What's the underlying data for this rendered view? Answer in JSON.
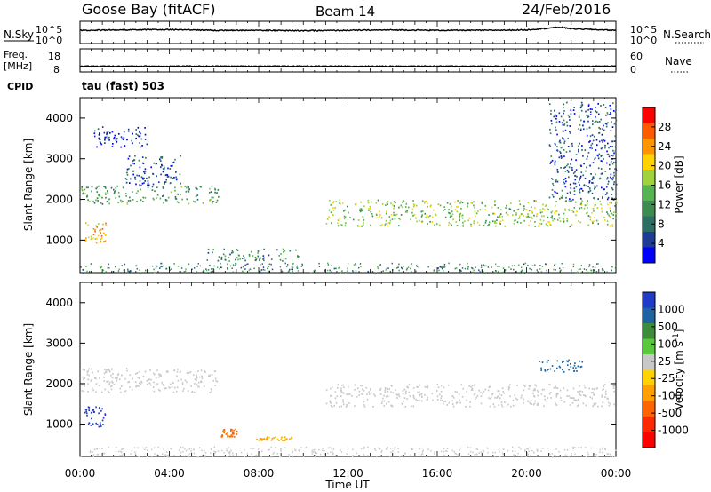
{
  "header": {
    "station": "Goose Bay (fitACF)",
    "beam": "Beam 14",
    "date": "24/Feb/2016"
  },
  "colors": {
    "power_scale": [
      "#0000ff",
      "#1e3c96",
      "#2d6e64",
      "#3c8c50",
      "#56b450",
      "#a0d23c",
      "#ffd200",
      "#ff9600",
      "#ff5a00",
      "#ff0000"
    ],
    "velocity_scale": [
      "#1e3cc8",
      "#1e64a0",
      "#3c8c3c",
      "#5ac83c",
      "#c8c8c8",
      "#ffd200",
      "#ffa000",
      "#ff6400",
      "#ff2800",
      "#ff0000"
    ]
  },
  "chart_data": [
    {
      "type": "line",
      "panel": "noise",
      "left_label": "N.Sky",
      "right_label": "N.Search",
      "left_ticks": [
        "10^5",
        "10^0"
      ],
      "right_ticks": [
        "10^5",
        "10^0"
      ],
      "x": [
        "00:00",
        "02:00",
        "04:00",
        "06:00",
        "08:00",
        "10:00",
        "12:00",
        "14:00",
        "16:00",
        "18:00",
        "20:00",
        "21:30",
        "22:00",
        "24:00"
      ],
      "series": [
        {
          "values": [
            3.0,
            3.1,
            3.2,
            3.0,
            3.0,
            2.9,
            3.0,
            3.1,
            3.0,
            3.0,
            3.1,
            3.8,
            3.4,
            3.0
          ]
        }
      ],
      "ylim": [
        0,
        5
      ]
    },
    {
      "type": "line",
      "panel": "frequency",
      "left_label_lines": [
        "Freq.",
        "[MHz]"
      ],
      "cpid_label": "CPID",
      "right_label": "Nave",
      "left_ticks": [
        "18",
        "8"
      ],
      "right_ticks": [
        "60",
        "0"
      ],
      "x": [
        "00:00",
        "04:00",
        "08:00",
        "12:00",
        "16:00",
        "20:00",
        "24:00"
      ],
      "series": [
        {
          "values": [
            10.5,
            10.5,
            10.5,
            10.5,
            10.5,
            10.5,
            10.5
          ]
        }
      ],
      "ylim": [
        8,
        18
      ]
    },
    {
      "type": "heatmap",
      "panel": "power",
      "mode_label": "tau (fast) 503",
      "ylabel": "Slant Range [km]",
      "yticks": [
        "1000",
        "2000",
        "3000",
        "4000"
      ],
      "xticks": [
        "00:00",
        "04:00",
        "08:00",
        "12:00",
        "16:00",
        "20:00",
        "00:00"
      ],
      "ylim": [
        200,
        4500
      ],
      "colorbar_label": "Power [dB]",
      "colorbar_ticks": [
        "28",
        "24",
        "20",
        "16",
        "12",
        "8",
        "4"
      ],
      "echo_regions": [
        {
          "t0": 0.0,
          "t1": 6.2,
          "r0": 1900,
          "r1": 2350,
          "level": 12
        },
        {
          "t0": 2.0,
          "t1": 4.5,
          "r0": 2350,
          "r1": 3100,
          "level": 6
        },
        {
          "t0": 0.2,
          "t1": 1.2,
          "r0": 950,
          "r1": 1450,
          "level": 22
        },
        {
          "t0": 0.5,
          "t1": 3.0,
          "r0": 3300,
          "r1": 3800,
          "level": 4
        },
        {
          "t0": 5.6,
          "t1": 9.8,
          "r0": 500,
          "r1": 800,
          "level": 10
        },
        {
          "t0": 11.0,
          "t1": 24.0,
          "r0": 1350,
          "r1": 2000,
          "level": 16
        },
        {
          "t0": 21.0,
          "t1": 24.0,
          "r0": 2000,
          "r1": 4400,
          "level": 6
        }
      ]
    },
    {
      "type": "heatmap",
      "panel": "velocity",
      "ylabel": "Slant Range [km]",
      "yticks": [
        "1000",
        "2000",
        "3000",
        "4000"
      ],
      "xticks": [
        "00:00",
        "04:00",
        "08:00",
        "12:00",
        "16:00",
        "20:00",
        "00:00"
      ],
      "xlabel": "Time UT",
      "ylim": [
        200,
        4500
      ],
      "colorbar_label": "Velocity [m s^-1]",
      "colorbar_ticks": [
        "1000",
        "500",
        "100",
        "25",
        "-25",
        "-100",
        "-500",
        "-1000"
      ],
      "echo_regions": [
        {
          "t0": 0.0,
          "t1": 6.2,
          "r0": 1800,
          "r1": 2400,
          "velocity": 0
        },
        {
          "t0": 0.2,
          "t1": 1.2,
          "r0": 950,
          "r1": 1450,
          "velocity": 700
        },
        {
          "t0": 6.3,
          "t1": 7.0,
          "r0": 700,
          "r1": 900,
          "velocity": -150
        },
        {
          "t0": 7.8,
          "t1": 9.5,
          "r0": 600,
          "r1": 700,
          "velocity": -120
        },
        {
          "t0": 11.0,
          "t1": 24.0,
          "r0": 1450,
          "r1": 2000,
          "velocity": 0
        },
        {
          "t0": 20.5,
          "t1": 22.5,
          "r0": 2300,
          "r1": 2600,
          "velocity": 300
        }
      ]
    }
  ]
}
